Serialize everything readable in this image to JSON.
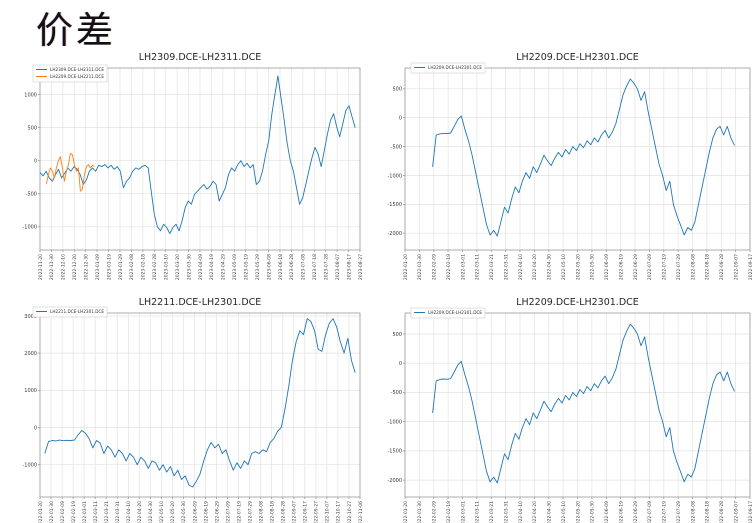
{
  "page": {
    "title": "价差"
  },
  "colors": {
    "line_blue": "#1f77b4",
    "line_orange": "#ff7f0e",
    "grid": "#e2e2e2",
    "spine": "#9a9a9a",
    "tick_label": "#3a3a3a",
    "legend_border": "#cccccc",
    "legend_text": "#333333"
  },
  "chart_data": [
    {
      "type": "line",
      "title": "LH2309.DCE-LH2311.DCE",
      "ylim": [
        -1350,
        1400
      ],
      "yticks": [
        1000,
        500,
        0,
        -500,
        -1000
      ],
      "xlabels": [
        "2022-11-20",
        "2022-11-30",
        "2022-12-10",
        "2022-12-20",
        "2022-12-30",
        "2023-01-09",
        "2023-01-19",
        "2023-01-29",
        "2023-02-08",
        "2023-02-18",
        "2023-02-28",
        "2023-03-10",
        "2023-03-20",
        "2023-03-30",
        "2023-04-09",
        "2023-04-19",
        "2023-04-29",
        "2023-05-09",
        "2023-05-19",
        "2023-05-29",
        "2023-06-08",
        "2023-06-18",
        "2023-06-28",
        "2023-07-08",
        "2023-07-18",
        "2023-07-28",
        "2023-08-07",
        "2023-08-17",
        "2023-08-27"
      ],
      "legend": [
        {
          "label": "LH2309.DCE-LH2311.DCE",
          "color": "#1f77b4"
        },
        {
          "label": "LH2209.DCE-LH2211.DCE",
          "color": "#ff7f0e"
        }
      ],
      "series": [
        {
          "name": "LH2309.DCE-LH2311.DCE",
          "color": "#1f77b4",
          "xstart": 0.0,
          "xend": 0.985,
          "values": [
            -180,
            -230,
            -160,
            -260,
            -310,
            -210,
            -130,
            -260,
            -190,
            -110,
            -160,
            -90,
            -130,
            -210,
            -360,
            -290,
            -160,
            -110,
            -160,
            -70,
            -90,
            -60,
            -110,
            -70,
            -130,
            -90,
            -160,
            -410,
            -310,
            -260,
            -160,
            -110,
            -130,
            -90,
            -70,
            -110,
            -460,
            -810,
            -1000,
            -1060,
            -960,
            -1010,
            -1100,
            -1010,
            -960,
            -1060,
            -910,
            -710,
            -610,
            -660,
            -510,
            -460,
            -410,
            -360,
            -430,
            -390,
            -310,
            -360,
            -610,
            -510,
            -410,
            -210,
            -110,
            -160,
            -60,
            0,
            -90,
            -40,
            -110,
            -60,
            -360,
            -310,
            -160,
            90,
            300,
            700,
            1000,
            1280,
            950,
            620,
            260,
            0,
            -160,
            -410,
            -660,
            -560,
            -360,
            -160,
            40,
            200,
            100,
            -90,
            150,
            400,
            610,
            710,
            510,
            360,
            560,
            760,
            830,
            660,
            500
          ]
        },
        {
          "name": "LH2209.DCE-LH2211.DCE",
          "color": "#ff7f0e",
          "xstart": 0.02,
          "xend": 0.17,
          "values": [
            -350,
            -210,
            -110,
            -160,
            -260,
            -110,
            0,
            60,
            -110,
            -310,
            -160,
            -60,
            110,
            90,
            -60,
            -160,
            -110,
            -460,
            -430,
            -210,
            -90,
            -60,
            -110,
            -70,
            -90
          ]
        }
      ]
    },
    {
      "type": "line",
      "title": "LH2209.DCE-LH2301.DCE",
      "ylim": [
        -2290,
        860
      ],
      "yticks": [
        500,
        0,
        -500,
        -1000,
        -1500,
        -2000
      ],
      "xlabels": [
        "2022-01-20",
        "2022-01-30",
        "2022-02-09",
        "2022-02-19",
        "2022-03-01",
        "2022-03-11",
        "2022-03-21",
        "2022-03-31",
        "2022-04-10",
        "2022-04-20",
        "2022-04-30",
        "2022-05-10",
        "2022-05-20",
        "2022-05-30",
        "2022-06-09",
        "2022-06-19",
        "2022-06-29",
        "2022-07-09",
        "2022-07-19",
        "2022-07-29",
        "2022-08-08",
        "2022-08-18",
        "2022-08-28",
        "2022-09-07",
        "2022-09-17"
      ],
      "legend": [
        {
          "label": "LH2209.DCE-LH2301.DCE",
          "color": "#1f77b4"
        }
      ],
      "series": [
        {
          "name": "LH2209.DCE-LH2301.DCE",
          "color": "#1f77b4",
          "xstart": 0.08,
          "xend": 0.955,
          "values": [
            -850,
            -300,
            -280,
            -270,
            -275,
            -265,
            -150,
            -30,
            30,
            -200,
            -400,
            -650,
            -950,
            -1250,
            -1550,
            -1850,
            -2030,
            -1950,
            -2050,
            -1800,
            -1550,
            -1650,
            -1400,
            -1200,
            -1300,
            -1100,
            -950,
            -1050,
            -850,
            -950,
            -800,
            -650,
            -750,
            -830,
            -700,
            -600,
            -680,
            -550,
            -630,
            -500,
            -570,
            -450,
            -520,
            -400,
            -470,
            -350,
            -420,
            -300,
            -220,
            -350,
            -250,
            -100,
            150,
            400,
            550,
            670,
            600,
            500,
            300,
            450,
            100,
            -200,
            -500,
            -800,
            -1000,
            -1260,
            -1100,
            -1500,
            -1700,
            -1860,
            -2030,
            -1900,
            -1950,
            -1800,
            -1500,
            -1200,
            -900,
            -600,
            -350,
            -200,
            -150,
            -300,
            -150,
            -350,
            -480
          ]
        }
      ]
    },
    {
      "type": "line",
      "title": "LH2211.DCE-LH2301.DCE",
      "ylim": [
        -1870,
        3080
      ],
      "yticks": [
        3000,
        2000,
        1000,
        0,
        -1000
      ],
      "xlabels": [
        "2022-01-20",
        "2022-01-30",
        "2022-02-09",
        "2022-02-19",
        "2022-03-01",
        "2022-03-11",
        "2022-03-21",
        "2022-03-31",
        "2022-04-10",
        "2022-04-20",
        "2022-04-30",
        "2022-05-10",
        "2022-05-20",
        "2022-05-30",
        "2022-06-09",
        "2022-06-19",
        "2022-06-29",
        "2022-07-09",
        "2022-07-19",
        "2022-07-29",
        "2022-08-08",
        "2022-08-18",
        "2022-08-28",
        "2022-09-07",
        "2022-09-17",
        "2022-09-27",
        "2022-10-07",
        "2022-10-17",
        "2022-10-27",
        "2022-11-06"
      ],
      "legend": [
        {
          "label": "LH2211.DCE-LH2301.DCE",
          "color": "#1f77b4"
        }
      ],
      "series": [
        {
          "name": "LH2211.DCE-LH2301.DCE",
          "color": "#1f77b4",
          "xstart": 0.015,
          "xend": 0.985,
          "values": [
            -700,
            -380,
            -350,
            -360,
            -340,
            -355,
            -345,
            -350,
            -340,
            -200,
            -80,
            -150,
            -300,
            -550,
            -350,
            -420,
            -700,
            -500,
            -600,
            -800,
            -600,
            -700,
            -900,
            -700,
            -800,
            -1000,
            -800,
            -900,
            -1100,
            -900,
            -950,
            -1150,
            -1000,
            -1200,
            -1050,
            -1300,
            -1150,
            -1400,
            -1300,
            -1550,
            -1600,
            -1450,
            -1250,
            -900,
            -600,
            -400,
            -550,
            -450,
            -700,
            -600,
            -900,
            -1150,
            -950,
            -1100,
            -900,
            -1000,
            -700,
            -650,
            -700,
            -600,
            -650,
            -400,
            -300,
            -100,
            0,
            500,
            1100,
            1800,
            2300,
            2600,
            2500,
            2930,
            2850,
            2600,
            2100,
            2050,
            2500,
            2800,
            2930,
            2700,
            2300,
            2000,
            2400,
            1800,
            1470
          ]
        }
      ]
    },
    {
      "type": "line",
      "title": "LH2209.DCE-LH2301.DCE",
      "ylim": [
        -2290,
        860
      ],
      "yticks": [
        500,
        0,
        -500,
        -1000,
        -1500,
        -2000
      ],
      "xlabels": [
        "2022-01-20",
        "2022-01-30",
        "2022-02-09",
        "2022-02-19",
        "2022-03-01",
        "2022-03-11",
        "2022-03-21",
        "2022-03-31",
        "2022-04-10",
        "2022-04-20",
        "2022-04-30",
        "2022-05-10",
        "2022-05-20",
        "2022-05-30",
        "2022-06-09",
        "2022-06-19",
        "2022-06-29",
        "2022-07-09",
        "2022-07-19",
        "2022-07-29",
        "2022-08-08",
        "2022-08-18",
        "2022-08-28",
        "2022-09-07",
        "2022-09-17"
      ],
      "legend": [
        {
          "label": "LH2209.DCE-LH2301.DCE",
          "color": "#1f77b4"
        }
      ],
      "series": [
        {
          "name": "LH2209.DCE-LH2301.DCE",
          "color": "#1f77b4",
          "xstart": 0.08,
          "xend": 0.955,
          "values": [
            -850,
            -300,
            -280,
            -270,
            -275,
            -265,
            -150,
            -30,
            30,
            -200,
            -400,
            -650,
            -950,
            -1250,
            -1550,
            -1850,
            -2030,
            -1950,
            -2050,
            -1800,
            -1550,
            -1650,
            -1400,
            -1200,
            -1300,
            -1100,
            -950,
            -1050,
            -850,
            -950,
            -800,
            -650,
            -750,
            -830,
            -700,
            -600,
            -680,
            -550,
            -630,
            -500,
            -570,
            -450,
            -520,
            -400,
            -470,
            -350,
            -420,
            -300,
            -220,
            -350,
            -250,
            -100,
            150,
            400,
            550,
            670,
            600,
            500,
            300,
            450,
            100,
            -200,
            -500,
            -800,
            -1000,
            -1260,
            -1100,
            -1500,
            -1700,
            -1860,
            -2030,
            -1900,
            -1950,
            -1800,
            -1500,
            -1200,
            -900,
            -600,
            -350,
            -200,
            -150,
            -300,
            -150,
            -350,
            -480
          ]
        }
      ]
    }
  ]
}
